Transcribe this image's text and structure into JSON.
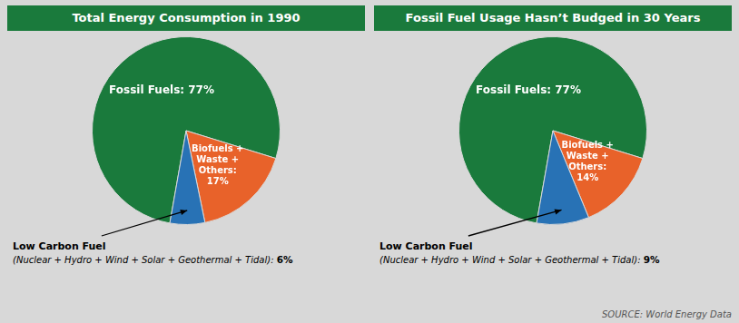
{
  "chart_data": [
    {
      "type": "pie",
      "title": "Total Energy Consumption in 1990",
      "values": [
        77,
        17,
        6
      ],
      "colors": [
        "#1a7a3c",
        "#e8622a",
        "#2872b5"
      ],
      "data_labels": true,
      "value_labels": [
        "Fossil Fuels: 77%",
        "Biofuels +\nWaste +\nOthers:\n17%",
        "6%"
      ],
      "annotations": [
        "Low Carbon Fuel",
        "(Nuclear + Hydro + Wind + Solar + Geothermal + Tidal): "
      ]
    },
    {
      "type": "pie",
      "title": "Fossil Fuel Usage Hasn’t Budged in 30 Years",
      "values": [
        77,
        14,
        9
      ],
      "colors": [
        "#1a7a3c",
        "#e8622a",
        "#2872b5"
      ],
      "data_labels": true,
      "value_labels": [
        "Fossil Fuels: 77%",
        "Biofuels +\nWaste +\nOthers:\n14%",
        "9%"
      ],
      "annotations": [
        "Low Carbon Fuel",
        "(Nuclear + Hydro + Wind + Solar + Geothermal + Tidal): "
      ]
    }
  ],
  "source": "SOURCE: World Energy Data"
}
